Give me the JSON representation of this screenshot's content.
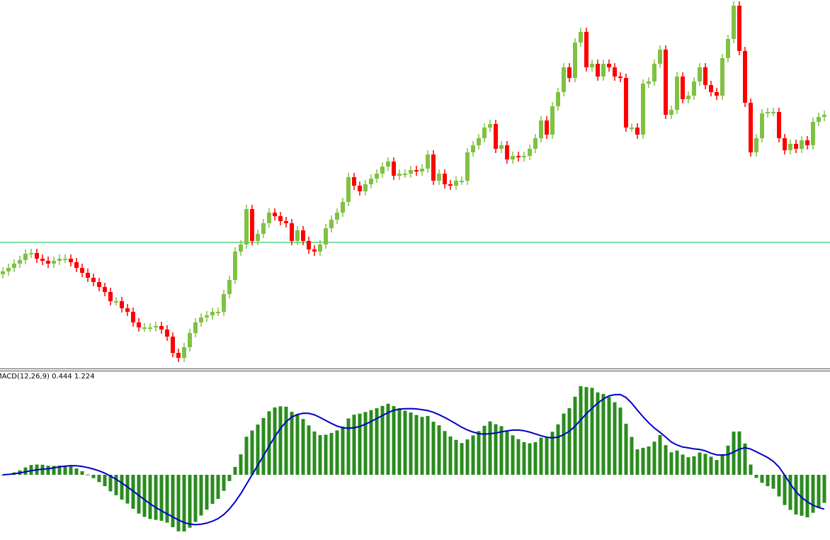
{
  "colors": {
    "bull_candle": "#7fc241",
    "bear_candle": "#ff0000",
    "horizontal_line": "#00c040",
    "histogram": "#2a8c1e",
    "signal_line": "#0000c8",
    "background": "#ffffff"
  },
  "indicator": {
    "label": "MACD(12,26,9) 0.444 1.224",
    "name": "MACD",
    "params": [
      12,
      26,
      9
    ],
    "main_value": 0.444,
    "signal_value": 1.224
  },
  "chart_data": {
    "type": "candlestick",
    "horizontal_line_level": 258,
    "closes": [
      217,
      222,
      228,
      233,
      242,
      243,
      235,
      232,
      228,
      232,
      235,
      235,
      230,
      222,
      215,
      208,
      202,
      195,
      188,
      175,
      175,
      165,
      160,
      145,
      138,
      138,
      138,
      140,
      135,
      125,
      102,
      95,
      110,
      130,
      145,
      152,
      155,
      160,
      160,
      185,
      205,
      245,
      255,
      305,
      260,
      270,
      285,
      300,
      295,
      288,
      285,
      260,
      275,
      260,
      248,
      245,
      255,
      278,
      290,
      300,
      315,
      350,
      338,
      330,
      340,
      348,
      355,
      365,
      372,
      352,
      355,
      355,
      360,
      358,
      362,
      382,
      345,
      355,
      340,
      338,
      345,
      345,
      385,
      395,
      405,
      420,
      425,
      390,
      395,
      375,
      380,
      378,
      380,
      390,
      405,
      430,
      410,
      450,
      470,
      505,
      490,
      540,
      555,
      505,
      510,
      492,
      510,
      505,
      492,
      490,
      420,
      420,
      410,
      482,
      485,
      510,
      530,
      438,
      445,
      492,
      460,
      465,
      485,
      505,
      480,
      470,
      465,
      518,
      545,
      592,
      528,
      455,
      385,
      405,
      440,
      442,
      442,
      405,
      388,
      397,
      390,
      402,
      395,
      428,
      435,
      438
    ]
  }
}
